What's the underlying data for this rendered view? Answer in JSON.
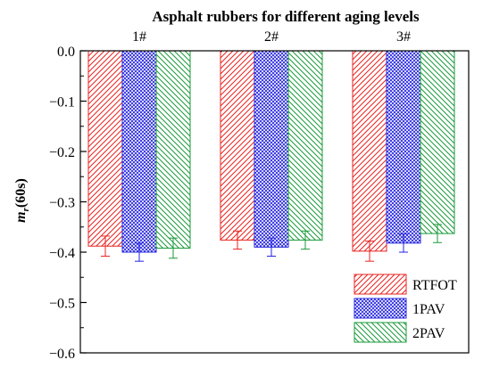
{
  "chart_data": {
    "type": "bar",
    "title": "Asphalt rubbers for different aging levels",
    "xlabel": "",
    "ylabel": "m_r(60s)",
    "ylabel_main": "m",
    "ylabel_sub": "r",
    "ylabel_suffix": "(60s)",
    "categories": [
      "1#",
      "2#",
      "3#"
    ],
    "ylim": [
      -0.6,
      0.0
    ],
    "yticks": [
      0.0,
      -0.1,
      -0.2,
      -0.3,
      -0.4,
      -0.5,
      -0.6
    ],
    "ytick_labels": [
      "0.0",
      "−0.1",
      "−0.2",
      "−0.3",
      "−0.4",
      "−0.5",
      "−0.6"
    ],
    "legend_position": "bottom-right",
    "grid": false,
    "series": [
      {
        "name": "RTFOT",
        "color": "#e8231f",
        "pattern": "diagonal-up",
        "values": [
          -0.388,
          -0.376,
          -0.398
        ],
        "errors": [
          0.02,
          0.018,
          0.02
        ]
      },
      {
        "name": "1PAV",
        "color": "#2424e0",
        "pattern": "crosshatch",
        "values": [
          -0.4,
          -0.39,
          -0.382
        ],
        "errors": [
          0.018,
          0.018,
          0.018
        ]
      },
      {
        "name": "2PAV",
        "color": "#1a9a3a",
        "pattern": "diagonal-down",
        "values": [
          -0.392,
          -0.376,
          -0.363
        ],
        "errors": [
          0.02,
          0.018,
          0.018
        ]
      }
    ]
  }
}
